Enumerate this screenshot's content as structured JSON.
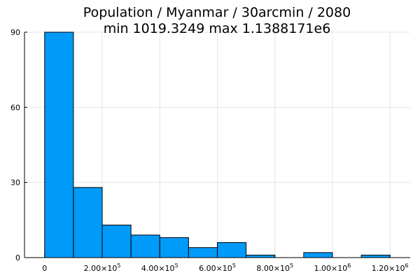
{
  "chart_data": {
    "type": "bar",
    "title": "Population / Myanmar / 30arcmin / 2080",
    "subtitle": "min 1019.3249  max 1.1388171e6",
    "xlabel": "",
    "ylabel": "",
    "bin_edges": [
      0,
      100000,
      200000,
      300000,
      400000,
      500000,
      600000,
      700000,
      800000,
      900000,
      1000000,
      1100000,
      1200000
    ],
    "counts": [
      90,
      28,
      13,
      9,
      8,
      4,
      6,
      1,
      0,
      2,
      0,
      1
    ],
    "xlim": [
      -70000,
      1270000
    ],
    "ylim": [
      0,
      90
    ],
    "y_ticks": [
      0,
      30,
      60,
      90
    ],
    "y_tick_labels": [
      "0",
      "30",
      "60",
      "90"
    ],
    "x_ticks": [
      0,
      200000,
      400000,
      600000,
      800000,
      1000000,
      1200000
    ],
    "x_tick_labels": [
      {
        "mantissa": "0",
        "exp": ""
      },
      {
        "mantissa": "2.00×10",
        "exp": "5"
      },
      {
        "mantissa": "4.00×10",
        "exp": "5"
      },
      {
        "mantissa": "6.00×10",
        "exp": "5"
      },
      {
        "mantissa": "8.00×10",
        "exp": "5"
      },
      {
        "mantissa": "1.00×10",
        "exp": "6"
      },
      {
        "mantissa": "1.20×10",
        "exp": "6"
      }
    ],
    "grid": true,
    "legend": "none",
    "bar_color": "#009af9"
  }
}
